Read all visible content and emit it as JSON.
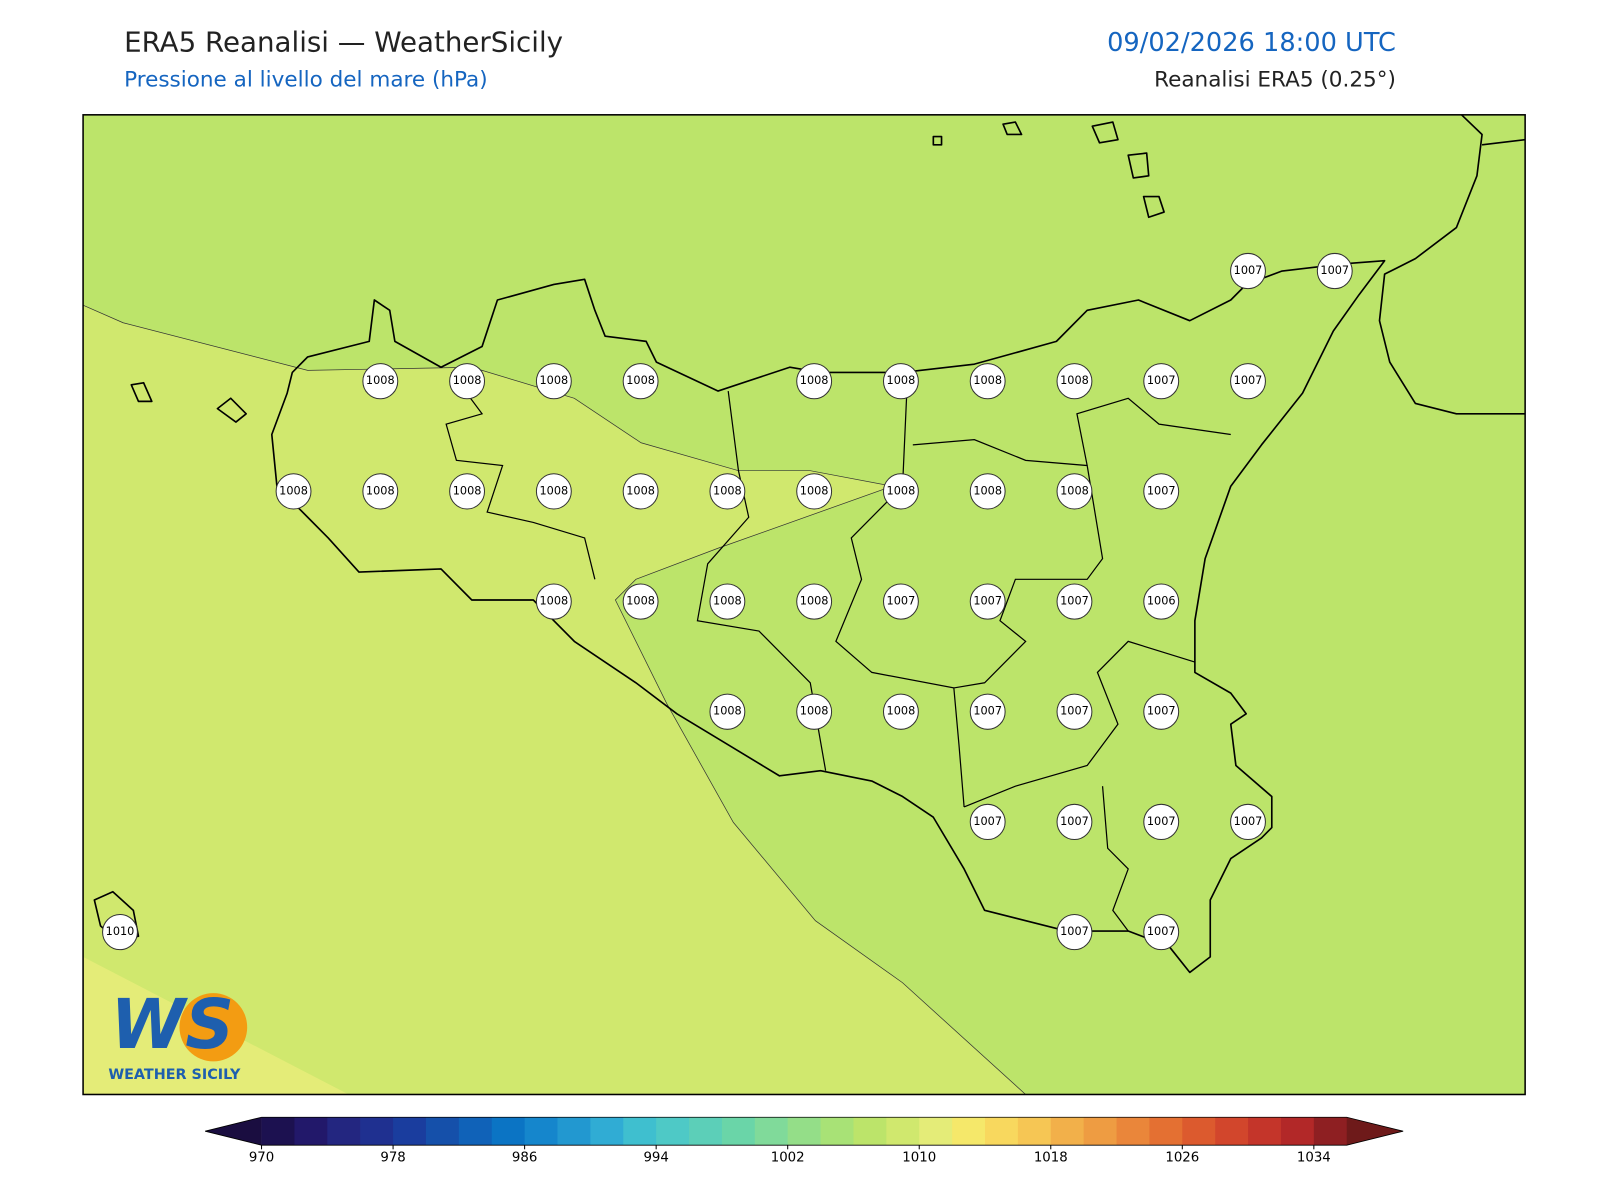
{
  "header": {
    "title": "ERA5 Reanalisi — WeatherSicily",
    "subtitle": "Pressione al livello del mare (hPa)",
    "date": "09/02/2026 18:00 UTC",
    "source": "Reanalisi ERA5 (0.25°)"
  },
  "stations": {
    "grid": [
      [
        null,
        null,
        null,
        null,
        null,
        null,
        null,
        null,
        null,
        null,
        null,
        null,
        null,
        1007,
        1007
      ],
      [
        null,
        null,
        null,
        1008,
        1008,
        1008,
        1008,
        null,
        1008,
        1008,
        1008,
        1008,
        1007,
        1007,
        null
      ],
      [
        null,
        null,
        1008,
        1008,
        1008,
        1008,
        1008,
        1008,
        1008,
        1008,
        1008,
        1008,
        1007,
        null,
        null
      ],
      [
        null,
        null,
        null,
        null,
        null,
        1008,
        1008,
        1008,
        1008,
        1007,
        1007,
        1007,
        1006,
        null,
        null
      ],
      [
        null,
        null,
        null,
        null,
        null,
        null,
        null,
        1008,
        1008,
        1008,
        1007,
        1007,
        1007,
        null,
        null
      ],
      [
        null,
        null,
        null,
        null,
        null,
        null,
        null,
        null,
        null,
        null,
        1007,
        1007,
        1007,
        1007,
        null
      ],
      [
        1010,
        null,
        null,
        null,
        null,
        null,
        null,
        null,
        null,
        null,
        null,
        1007,
        1007,
        null,
        null
      ]
    ]
  },
  "colorbar": {
    "clim": [
      970,
      1036
    ],
    "ticks": [
      970,
      978,
      986,
      994,
      1002,
      1010,
      1018,
      1026,
      1034
    ],
    "under": "#1a0d40",
    "over": "#6e1a1a",
    "colors": [
      "#1c1150",
      "#22186a",
      "#232680",
      "#1f3090",
      "#1a3d9e",
      "#1550aa",
      "#1062b8",
      "#0b74c4",
      "#1586cc",
      "#2298d0",
      "#30acd4",
      "#3fbfcf",
      "#4ec9c6",
      "#5ccfb8",
      "#6ad5a8",
      "#80da9a",
      "#94de88",
      "#a8e276",
      "#bce46a",
      "#d0e86e",
      "#e4ec78",
      "#f5e86a",
      "#f8d85e",
      "#f6c654",
      "#f2b04a",
      "#ee9c42",
      "#ea863a",
      "#e47032",
      "#dc5a2e",
      "#d2462c",
      "#c4352a",
      "#b22828",
      "#8e1f22"
    ]
  },
  "logo": {
    "mark": "WS",
    "name": "WEATHER SICILY"
  }
}
